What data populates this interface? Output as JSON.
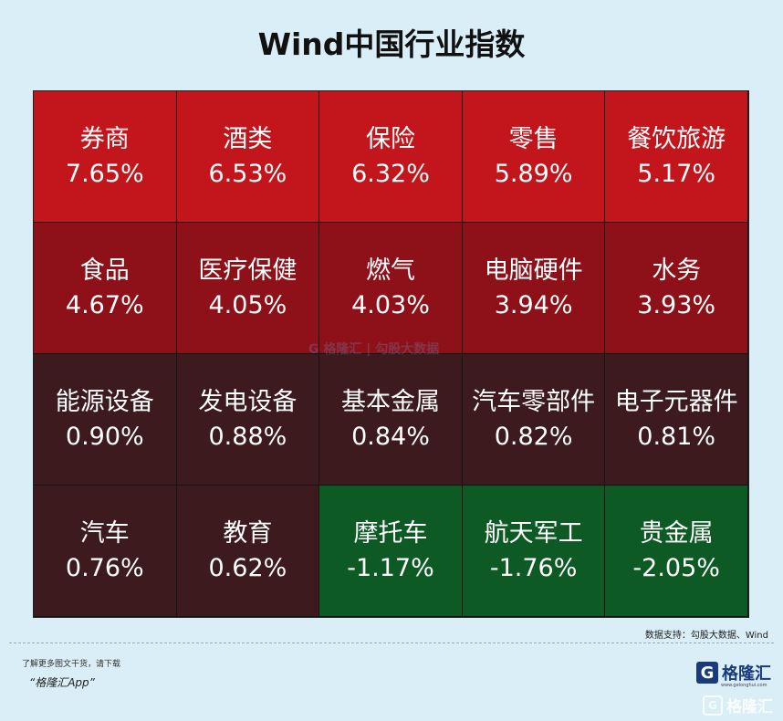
{
  "title": "Wind中国行业指数",
  "chart_data": {
    "type": "heatmap",
    "title": "Wind中国行业指数",
    "columns": 5,
    "cells": [
      {
        "name": "券商",
        "value": "7.65%"
      },
      {
        "name": "酒类",
        "value": "6.53%"
      },
      {
        "name": "保险",
        "value": "6.32%"
      },
      {
        "name": "零售",
        "value": "5.89%"
      },
      {
        "name": "餐饮旅游",
        "value": "5.17%"
      },
      {
        "name": "食品",
        "value": "4.67%"
      },
      {
        "name": "医疗保健",
        "value": "4.05%"
      },
      {
        "name": "燃气",
        "value": "4.03%"
      },
      {
        "name": "电脑硬件",
        "value": "3.94%"
      },
      {
        "name": "水务",
        "value": "3.93%"
      },
      {
        "name": "能源设备",
        "value": "0.90%"
      },
      {
        "name": "发电设备",
        "value": "0.88%"
      },
      {
        "name": "基本金属",
        "value": "0.84%"
      },
      {
        "name": "汽车零部件",
        "value": "0.82%"
      },
      {
        "name": "电子元器件",
        "value": "0.81%"
      },
      {
        "name": "汽车",
        "value": "0.76%"
      },
      {
        "name": "教育",
        "value": "0.62%"
      },
      {
        "name": "摩托车",
        "value": "-1.17%"
      },
      {
        "name": "航天军工",
        "value": "-1.76%"
      },
      {
        "name": "贵金属",
        "value": "-2.05%"
      }
    ],
    "colors": {
      "strong_up": "#c2151c",
      "mid_up": "#8e1018",
      "weak_up": "#3d1a1e",
      "down": "#0e5a24"
    }
  },
  "footer": {
    "source": "数据支持：勾股大数据、Wind",
    "promo": "了解更多图文干货，请下载",
    "app": "“格隆汇App”",
    "logo_text": "格隆汇",
    "logo_sub": "www.gelonghui.com",
    "watermark_text": "格隆汇"
  }
}
